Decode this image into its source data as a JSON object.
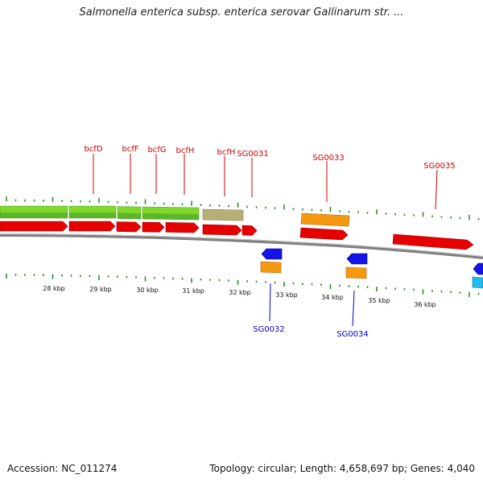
{
  "title": "Salmonella enterica subsp. enterica serovar Gallinarum str. ...",
  "footer": {
    "accession": "Accession: NC_011274",
    "topology": "Topology: circular; Length: 4,658,697 bp; Genes: 4,040"
  },
  "colors": {
    "forward_gene": "#e00000",
    "reverse_gene": "#1010e0",
    "rna_orange": "#f08a00",
    "khaki": "#b8ae78",
    "green_band": "#66cc22",
    "cyan": "#22bbee",
    "backbone": "#888888",
    "ticks": "#2a8a2a",
    "label_red": "#cc0000",
    "label_blue": "#0000cc"
  },
  "kbp_labels": [
    "28 kbp",
    "29 kbp",
    "30 kbp",
    "31 kbp",
    "32 kbp",
    "33 kbp",
    "34 kbp",
    "35 kbp",
    "36 kbp"
  ],
  "top_gene_labels": [
    "bcfD",
    "bcfF",
    "bcfG",
    "bcfH",
    "bcfH",
    "SG0031",
    "SG0033",
    "SG0035"
  ],
  "bottom_gene_labels": [
    "SG0032",
    "SG0034"
  ]
}
